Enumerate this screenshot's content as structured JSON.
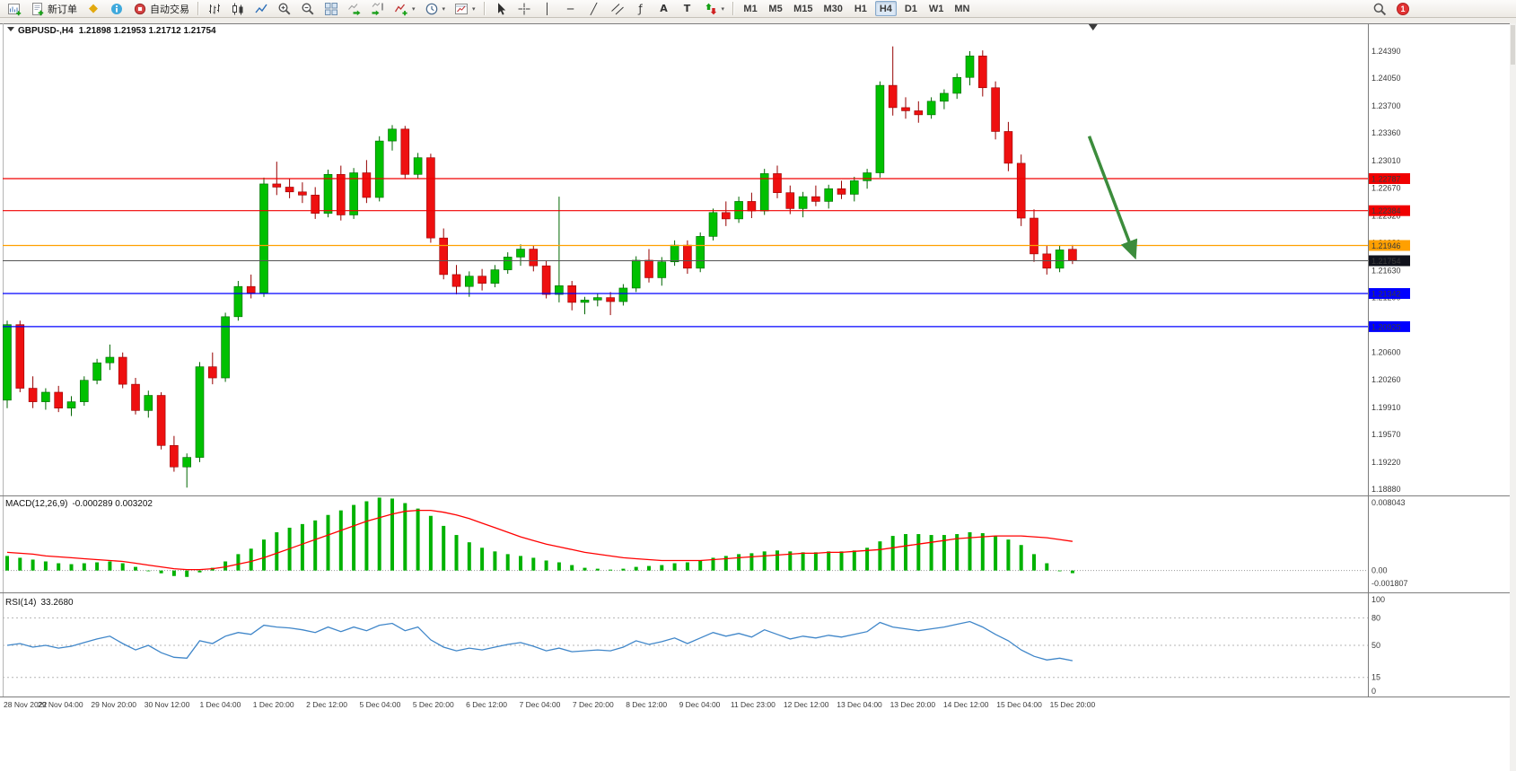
{
  "title_overlay": {
    "symbol_period": "GBPUSD-,H4",
    "ohlc": "1.21898 1.21953 1.21712 1.21754"
  },
  "toolbar": {
    "groups": [
      {
        "name": "file",
        "items": [
          {
            "name": "new-chart",
            "icon": "chart-plus"
          },
          {
            "name": "new-order",
            "icon": "new-order",
            "label": "新订单"
          },
          {
            "name": "metaeditor",
            "icon": "metaeditor"
          },
          {
            "name": "mql-community",
            "icon": "community"
          },
          {
            "name": "autotrading",
            "icon": "autotrading",
            "label": "自动交易"
          }
        ]
      },
      {
        "name": "chart-controls",
        "items": [
          {
            "name": "bar-chart-mode",
            "icon": "bars-chart"
          },
          {
            "name": "candle-chart-mode",
            "icon": "candles-chart"
          },
          {
            "name": "line-chart-mode",
            "icon": "line-chart"
          },
          {
            "name": "zoom-in",
            "icon": "zoom-in"
          },
          {
            "name": "zoom-out",
            "icon": "zoom-out"
          },
          {
            "name": "tile-windows",
            "icon": "tile-windows"
          },
          {
            "name": "auto-scroll",
            "icon": "auto-scroll"
          },
          {
            "name": "chart-shift",
            "icon": "chart-shift"
          },
          {
            "name": "indicators",
            "icon": "indicators-add",
            "dropdown": true
          },
          {
            "name": "periods",
            "icon": "periods-clock",
            "dropdown": true
          },
          {
            "name": "templates",
            "icon": "template-chart",
            "dropdown": true
          }
        ]
      },
      {
        "name": "objects",
        "items": [
          {
            "name": "cursor",
            "icon": "cursor"
          },
          {
            "name": "crosshair",
            "icon": "crosshair"
          },
          {
            "name": "vertical-line",
            "icon": "vline"
          },
          {
            "name": "horizontal-line",
            "icon": "hline"
          },
          {
            "name": "trendline",
            "icon": "trendline"
          },
          {
            "name": "equidistant-channel",
            "icon": "channel"
          },
          {
            "name": "fibonacci",
            "icon": "fibonacci"
          },
          {
            "name": "text",
            "icon": "text-a"
          },
          {
            "name": "text-label",
            "icon": "label-flag"
          },
          {
            "name": "arrows",
            "icon": "arrows",
            "dropdown": true
          }
        ]
      },
      {
        "name": "timeframes",
        "items": [
          {
            "name": "tf-m1",
            "label": "M1"
          },
          {
            "name": "tf-m5",
            "label": "M5"
          },
          {
            "name": "tf-m15",
            "label": "M15"
          },
          {
            "name": "tf-m30",
            "label": "M30"
          },
          {
            "name": "tf-h1",
            "label": "H1"
          },
          {
            "name": "tf-h4",
            "label": "H4",
            "active": true
          },
          {
            "name": "tf-d1",
            "label": "D1"
          },
          {
            "name": "tf-w1",
            "label": "W1"
          },
          {
            "name": "tf-mn",
            "label": "MN"
          }
        ]
      }
    ],
    "right": [
      {
        "name": "search",
        "icon": "search"
      },
      {
        "name": "notifications",
        "badge": "1"
      }
    ]
  },
  "chart_data": {
    "type": "candlestick",
    "title": "GBPUSD-,H4",
    "symbol": "GBPUSD-",
    "timeframe": "H4",
    "colors": {
      "bull": "#00c000",
      "bull_border": "#006600",
      "bear": "#ee1010",
      "bear_border": "#960000"
    },
    "price_axis": {
      "top": 1.24695,
      "bottom": 1.18824,
      "ticks": [
        1.2439,
        1.2405,
        1.237,
        1.2336,
        1.2301,
        1.2267,
        1.2232,
        1.2198,
        1.2163,
        1.2129,
        1.2095,
        1.206,
        1.2026,
        1.1991,
        1.1957,
        1.1922,
        1.1888
      ]
    },
    "time_labels": [
      "28 Nov 2022",
      "29 Nov 04:00",
      "29 Nov 20:00",
      "30 Nov 12:00",
      "1 Dec 04:00",
      "1 Dec 20:00",
      "2 Dec 12:00",
      "5 Dec 04:00",
      "5 Dec 20:00",
      "6 Dec 12:00",
      "7 Dec 04:00",
      "7 Dec 20:00",
      "8 Dec 12:00",
      "9 Dec 04:00",
      "11 Dec 23:00",
      "12 Dec 12:00",
      "13 Dec 04:00",
      "13 Dec 20:00",
      "14 Dec 12:00",
      "15 Dec 04:00",
      "15 Dec 20:00"
    ],
    "candles": [
      [
        1.2,
        1.21,
        1.199,
        1.2095
      ],
      [
        1.2095,
        1.21,
        1.201,
        1.2015
      ],
      [
        1.2015,
        1.203,
        1.199,
        1.1998
      ],
      [
        1.1998,
        1.2015,
        1.1988,
        1.201
      ],
      [
        1.201,
        1.2018,
        1.1985,
        1.199
      ],
      [
        1.199,
        1.2005,
        1.198,
        1.1998
      ],
      [
        1.1998,
        1.203,
        1.1993,
        1.2025
      ],
      [
        1.2025,
        1.2052,
        1.202,
        1.2047
      ],
      [
        1.2047,
        1.207,
        1.2038,
        1.2054
      ],
      [
        1.2054,
        1.206,
        1.2015,
        1.202
      ],
      [
        1.202,
        1.2028,
        1.1982,
        1.1987
      ],
      [
        1.1987,
        1.2012,
        1.1978,
        1.2006
      ],
      [
        1.2006,
        1.201,
        1.1938,
        1.1943
      ],
      [
        1.1943,
        1.1955,
        1.191,
        1.1916
      ],
      [
        1.1916,
        1.1933,
        1.189,
        1.1928
      ],
      [
        1.1928,
        1.2048,
        1.1922,
        1.2042
      ],
      [
        1.2042,
        1.206,
        1.202,
        1.2028
      ],
      [
        1.2028,
        1.211,
        1.2023,
        1.2105
      ],
      [
        1.2105,
        1.215,
        1.21,
        1.2143
      ],
      [
        1.2143,
        1.2158,
        1.2128,
        1.2135
      ],
      [
        1.2135,
        1.228,
        1.213,
        1.2272
      ],
      [
        1.2272,
        1.23,
        1.2258,
        1.2268
      ],
      [
        1.2268,
        1.2279,
        1.2254,
        1.2262
      ],
      [
        1.2262,
        1.2274,
        1.2248,
        1.2258
      ],
      [
        1.2258,
        1.2268,
        1.2228,
        1.2235
      ],
      [
        1.2235,
        1.229,
        1.223,
        1.2284
      ],
      [
        1.2284,
        1.2295,
        1.2226,
        1.2233
      ],
      [
        1.2233,
        1.2292,
        1.2228,
        1.2286
      ],
      [
        1.2286,
        1.2302,
        1.2248,
        1.2255
      ],
      [
        1.2255,
        1.2332,
        1.225,
        1.2326
      ],
      [
        1.2326,
        1.2346,
        1.2314,
        1.2341
      ],
      [
        1.2341,
        1.2345,
        1.2278,
        1.2284
      ],
      [
        1.2284,
        1.2311,
        1.2279,
        1.2305
      ],
      [
        1.2305,
        1.231,
        1.2198,
        1.2204
      ],
      [
        1.2204,
        1.2216,
        1.2152,
        1.2158
      ],
      [
        1.2158,
        1.217,
        1.2133,
        1.2143
      ],
      [
        1.2143,
        1.2162,
        1.213,
        1.2156
      ],
      [
        1.2156,
        1.2165,
        1.2138,
        1.2147
      ],
      [
        1.2147,
        1.217,
        1.2142,
        1.2164
      ],
      [
        1.2164,
        1.2186,
        1.2159,
        1.218
      ],
      [
        1.218,
        1.2196,
        1.2169,
        1.219
      ],
      [
        1.219,
        1.2195,
        1.2162,
        1.2169
      ],
      [
        1.2169,
        1.2176,
        1.2128,
        1.2133
      ],
      [
        1.2133,
        1.2256,
        1.2123,
        1.2144
      ],
      [
        1.2144,
        1.215,
        1.2113,
        1.2123
      ],
      [
        1.2123,
        1.213,
        1.2108,
        1.2126
      ],
      [
        1.2126,
        1.2134,
        1.2118,
        1.2129
      ],
      [
        1.2129,
        1.2136,
        1.2107,
        1.2124
      ],
      [
        1.2124,
        1.2146,
        1.2119,
        1.2141
      ],
      [
        1.2141,
        1.2181,
        1.2136,
        1.2176
      ],
      [
        1.2176,
        1.219,
        1.2148,
        1.2154
      ],
      [
        1.2154,
        1.218,
        1.2144,
        1.2174
      ],
      [
        1.2174,
        1.2201,
        1.2169,
        1.2195
      ],
      [
        1.2195,
        1.2201,
        1.2159,
        1.2166
      ],
      [
        1.2166,
        1.2211,
        1.2161,
        1.2206
      ],
      [
        1.2206,
        1.2241,
        1.2201,
        1.2236
      ],
      [
        1.2236,
        1.225,
        1.2219,
        1.2228
      ],
      [
        1.2228,
        1.2256,
        1.2223,
        1.225
      ],
      [
        1.225,
        1.2261,
        1.2229,
        1.2238
      ],
      [
        1.2238,
        1.2291,
        1.2233,
        1.2285
      ],
      [
        1.2285,
        1.2295,
        1.2254,
        1.2261
      ],
      [
        1.2261,
        1.227,
        1.2234,
        1.2241
      ],
      [
        1.2241,
        1.2262,
        1.223,
        1.2256
      ],
      [
        1.2256,
        1.227,
        1.2244,
        1.225
      ],
      [
        1.225,
        1.2271,
        1.2241,
        1.2266
      ],
      [
        1.2266,
        1.2276,
        1.2253,
        1.2259
      ],
      [
        1.2259,
        1.2281,
        1.225,
        1.2276
      ],
      [
        1.2276,
        1.2291,
        1.2266,
        1.2286
      ],
      [
        1.2286,
        1.2401,
        1.228,
        1.2396
      ],
      [
        1.2396,
        1.2445,
        1.2358,
        1.2368
      ],
      [
        1.2368,
        1.2381,
        1.2354,
        1.2364
      ],
      [
        1.2364,
        1.2376,
        1.2349,
        1.2359
      ],
      [
        1.2359,
        1.2381,
        1.2354,
        1.2376
      ],
      [
        1.2376,
        1.2391,
        1.2366,
        1.2386
      ],
      [
        1.2386,
        1.2411,
        1.2379,
        1.2406
      ],
      [
        1.2406,
        1.2439,
        1.2396,
        1.2433
      ],
      [
        1.2433,
        1.244,
        1.2382,
        1.2393
      ],
      [
        1.2393,
        1.2401,
        1.2328,
        1.2338
      ],
      [
        1.2338,
        1.235,
        1.2288,
        1.2298
      ],
      [
        1.2298,
        1.2309,
        1.2219,
        1.2229
      ],
      [
        1.2229,
        1.224,
        1.2174,
        1.2184
      ],
      [
        1.2184,
        1.2195,
        1.2158,
        1.2166
      ],
      [
        1.2166,
        1.2195,
        1.2161,
        1.2189
      ],
      [
        1.21898,
        1.21953,
        1.21712,
        1.21754
      ]
    ],
    "hlines": [
      {
        "price": 1.22787,
        "color": "#f00000",
        "kind": "resistance"
      },
      {
        "price": 1.22384,
        "color": "#f00000",
        "kind": "resistance"
      },
      {
        "price": 1.21946,
        "color": "#ffa000",
        "kind": "pivot"
      },
      {
        "price": 1.21342,
        "color": "#0000ff",
        "kind": "support"
      },
      {
        "price": 1.20925,
        "color": "#0000ff",
        "kind": "support"
      }
    ],
    "bid": {
      "price": 1.21754,
      "line_color": "#555555",
      "label_bg": "#10121c"
    },
    "trend_arrow": {
      "from": {
        "bar": 84.3,
        "price": 1.2332
      },
      "to": {
        "bar": 87.8,
        "price": 1.2183
      },
      "color": "#3c8c3c"
    },
    "indicators": {
      "macd": {
        "name": "MACD(12,26,9)",
        "values_text": "-0.000289 0.003202",
        "scale": {
          "top": "0.008043",
          "zero": "0.00",
          "bottom": "-0.001807"
        },
        "vmax": 0.008043,
        "vmin": -0.001807,
        "hist_color": "#00b200",
        "signal_color": "#ff0000",
        "histogram": [
          0.0016,
          0.0014,
          0.0012,
          0.001,
          0.0008,
          0.0007,
          0.0008,
          0.0009,
          0.001,
          0.0008,
          0.0004,
          0.0,
          -0.0003,
          -0.0006,
          -0.0007,
          -0.0002,
          0.0003,
          0.001,
          0.0018,
          0.0024,
          0.0034,
          0.0042,
          0.0047,
          0.0051,
          0.0055,
          0.0061,
          0.0066,
          0.0072,
          0.0076,
          0.008,
          0.0079,
          0.0074,
          0.0068,
          0.006,
          0.0049,
          0.0039,
          0.0031,
          0.0025,
          0.0021,
          0.0018,
          0.0016,
          0.0014,
          0.0011,
          0.0009,
          0.0006,
          0.0003,
          0.0002,
          0.0001,
          0.0002,
          0.0004,
          0.0005,
          0.0006,
          0.0008,
          0.0009,
          0.0011,
          0.0014,
          0.0016,
          0.0018,
          0.0019,
          0.0021,
          0.0022,
          0.0021,
          0.002,
          0.002,
          0.0021,
          0.0021,
          0.0022,
          0.0025,
          0.0032,
          0.0038,
          0.004,
          0.004,
          0.0039,
          0.0039,
          0.004,
          0.0042,
          0.0041,
          0.0038,
          0.0034,
          0.0028,
          0.0018,
          0.0008,
          0.0,
          -0.000289
        ],
        "signal": [
          0.002,
          0.0019,
          0.0018,
          0.0016,
          0.0015,
          0.0014,
          0.0013,
          0.0012,
          0.0011,
          0.001,
          0.0008,
          0.0006,
          0.0004,
          0.0002,
          0.0001,
          0.0001,
          0.0002,
          0.0004,
          0.0007,
          0.001,
          0.0014,
          0.0019,
          0.0024,
          0.0029,
          0.0034,
          0.0039,
          0.0044,
          0.0049,
          0.0054,
          0.0058,
          0.0062,
          0.0065,
          0.0066,
          0.0066,
          0.0064,
          0.0061,
          0.0057,
          0.0052,
          0.0047,
          0.0042,
          0.0037,
          0.0033,
          0.0029,
          0.0026,
          0.0023,
          0.002,
          0.0018,
          0.0016,
          0.0014,
          0.0013,
          0.0012,
          0.0011,
          0.0011,
          0.0011,
          0.0011,
          0.0012,
          0.0013,
          0.0014,
          0.0015,
          0.0016,
          0.0017,
          0.0018,
          0.0019,
          0.0019,
          0.002,
          0.002,
          0.0021,
          0.0022,
          0.0023,
          0.0025,
          0.0027,
          0.0029,
          0.0031,
          0.0033,
          0.0035,
          0.0036,
          0.0037,
          0.0038,
          0.0038,
          0.0038,
          0.0037,
          0.0036,
          0.0034,
          0.0032
        ]
      },
      "rsi": {
        "name": "RSI(14)",
        "value_text": "33.2680",
        "line_color": "#3f86c9",
        "scale": [
          100,
          80,
          50,
          15,
          0
        ],
        "levels": [
          80,
          50,
          15
        ],
        "values": [
          50,
          52,
          48,
          50,
          47,
          49,
          53,
          57,
          60,
          52,
          45,
          50,
          42,
          37,
          36,
          55,
          52,
          60,
          64,
          62,
          72,
          70,
          69,
          67,
          64,
          70,
          65,
          70,
          66,
          72,
          74,
          66,
          70,
          56,
          48,
          44,
          47,
          45,
          48,
          51,
          53,
          49,
          44,
          47,
          43,
          44,
          45,
          44,
          48,
          55,
          51,
          54,
          58,
          52,
          58,
          64,
          60,
          63,
          59,
          67,
          62,
          57,
          60,
          58,
          61,
          59,
          62,
          65,
          75,
          70,
          68,
          66,
          68,
          70,
          73,
          76,
          70,
          62,
          55,
          45,
          38,
          34,
          36,
          33.27
        ]
      }
    }
  }
}
